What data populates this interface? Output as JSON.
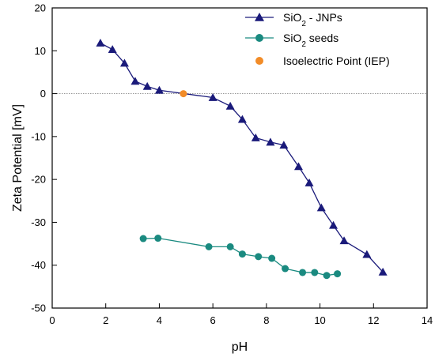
{
  "chart_data": {
    "type": "line",
    "xlabel": "pH",
    "ylabel": "Zeta Potential [mV]",
    "xlim": [
      0,
      14
    ],
    "ylim": [
      -50,
      20
    ],
    "x_ticks": [
      0,
      2,
      4,
      6,
      8,
      10,
      12,
      14
    ],
    "y_ticks": [
      20,
      10,
      0,
      -10,
      -20,
      -30,
      -40,
      -50
    ],
    "grid": false,
    "zero_reference_line": true,
    "legend_position": "top-right",
    "series": [
      {
        "name_parts": [
          "SiO",
          "2",
          " - JNPs"
        ],
        "marker": "triangle",
        "color": "#1a1a7a",
        "points": [
          [
            1.8,
            11.8
          ],
          [
            2.25,
            10.3
          ],
          [
            2.7,
            7.1
          ],
          [
            3.1,
            2.9
          ],
          [
            3.55,
            1.7
          ],
          [
            4.0,
            0.8
          ],
          [
            6.0,
            -0.9
          ],
          [
            6.65,
            -2.9
          ],
          [
            7.1,
            -6.0
          ],
          [
            7.6,
            -10.3
          ],
          [
            8.15,
            -11.3
          ],
          [
            8.65,
            -12.0
          ],
          [
            9.2,
            -17.0
          ],
          [
            9.6,
            -20.8
          ],
          [
            10.05,
            -26.6
          ],
          [
            10.5,
            -30.7
          ],
          [
            10.9,
            -34.3
          ],
          [
            11.75,
            -37.5
          ],
          [
            12.35,
            -41.6
          ]
        ]
      },
      {
        "name_parts": [
          "SiO",
          "2",
          " seeds"
        ],
        "marker": "circle",
        "color": "#1a8a80",
        "points": [
          [
            3.4,
            -33.8
          ],
          [
            3.95,
            -33.7
          ],
          [
            5.85,
            -35.7
          ],
          [
            6.65,
            -35.7
          ],
          [
            7.1,
            -37.4
          ],
          [
            7.7,
            -38.0
          ],
          [
            8.2,
            -38.4
          ],
          [
            8.7,
            -40.8
          ],
          [
            9.35,
            -41.7
          ],
          [
            9.8,
            -41.7
          ],
          [
            10.25,
            -42.4
          ],
          [
            10.65,
            -42.0
          ]
        ]
      },
      {
        "name_parts": [
          "Isoelectric Point (IEP)"
        ],
        "marker": "circle",
        "color": "#f28c28",
        "points": [
          [
            4.9,
            0.0
          ]
        ]
      }
    ]
  }
}
